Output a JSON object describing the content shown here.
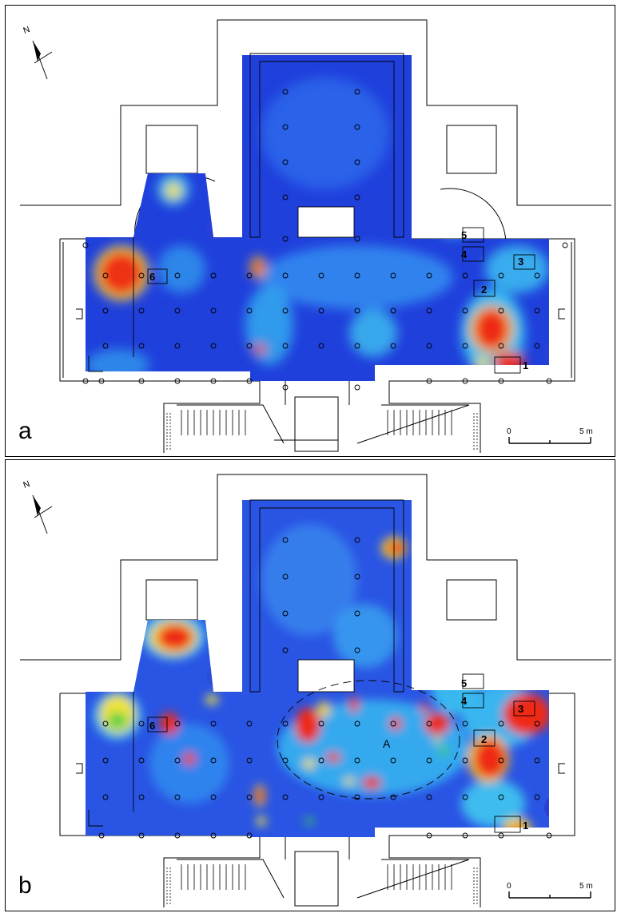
{
  "panels": [
    {
      "id": "a",
      "letter": "a",
      "north_label": "N",
      "scale": {
        "start_label": "0",
        "end_label": "5 m"
      },
      "zone_labels": [
        "1",
        "2",
        "3",
        "4",
        "5",
        "6"
      ],
      "region_label": ""
    },
    {
      "id": "b",
      "letter": "b",
      "north_label": "N",
      "scale": {
        "start_label": "0",
        "end_label": "5 m"
      },
      "zone_labels": [
        "1",
        "2",
        "3",
        "4",
        "5",
        "6"
      ],
      "region_label": "A"
    }
  ],
  "colors": {
    "low": "#1f35d8",
    "mid_low": "#2f78ee",
    "mid": "#37c7f0",
    "high": "#f0e93a",
    "very_high": "#ee2a14",
    "green": "#3fd24a",
    "outline": "#000000"
  }
}
